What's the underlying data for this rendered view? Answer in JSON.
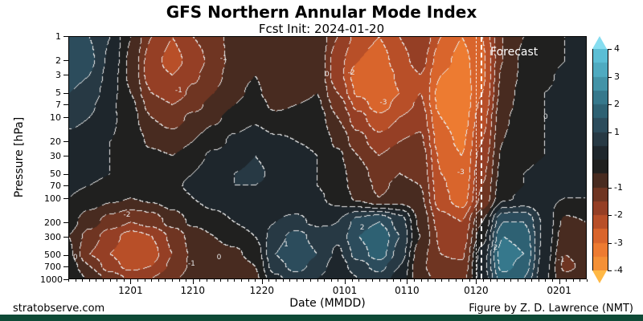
{
  "header": {
    "title": "GFS Northern Annular Mode Index",
    "subtitle": "Fcst Init: 2024-01-20"
  },
  "footer": {
    "left": "stratobserve.com",
    "right": "Figure by Z. D. Lawrence (NMT)",
    "bar_color": "#0e4a36"
  },
  "chart_data": {
    "type": "heatmap",
    "title": "GFS Northern Annular Mode Index",
    "subtitle": "Fcst Init: 2024-01-20",
    "xlabel": "Date (MMDD)",
    "ylabel": "Pressure [hPa]",
    "x_days_range": [
      0,
      75
    ],
    "x_ticks": [
      {
        "day": 9,
        "label": "1201"
      },
      {
        "day": 18,
        "label": "1210"
      },
      {
        "day": 28,
        "label": "1220"
      },
      {
        "day": 40,
        "label": "0101"
      },
      {
        "day": 49,
        "label": "0110"
      },
      {
        "day": 59,
        "label": "0120"
      },
      {
        "day": 71,
        "label": "0201"
      }
    ],
    "y_ticks": [
      1,
      2,
      3,
      5,
      7,
      10,
      20,
      30,
      50,
      70,
      100,
      200,
      300,
      500,
      700,
      1000
    ],
    "y_scale": "log",
    "contour_interval": 0.5,
    "value_range": [
      -4,
      4
    ],
    "colorbar_ticks": [
      4,
      3,
      2,
      1,
      -1,
      -2,
      -3,
      -4
    ],
    "colormap": {
      "values": [
        -4.5,
        -4,
        -3,
        -2,
        -1,
        -0.25,
        0.25,
        1,
        2,
        3,
        4,
        4.5
      ],
      "colors": [
        "#ffb845",
        "#f89b38",
        "#e9702e",
        "#a84426",
        "#5c3020",
        "#20201f",
        "#1e262c",
        "#2b4250",
        "#2f6b7e",
        "#49a0b5",
        "#62c8e0",
        "#86ddf0"
      ],
      "over": "#86ddf0",
      "under": "#ffb845",
      "contour_line_color": "#ebebeb"
    },
    "forecast": {
      "label": "Forecast",
      "day": 59.7
    },
    "grid": {
      "times_days": [
        0,
        3,
        6,
        9,
        12,
        15,
        18,
        21,
        24,
        27,
        30,
        33,
        36,
        39,
        42,
        45,
        48,
        51,
        54,
        57,
        60,
        63,
        66,
        69,
        72,
        75
      ],
      "pressures": [
        1,
        2,
        3,
        5,
        7,
        10,
        20,
        30,
        50,
        70,
        100,
        200,
        300,
        500,
        700,
        1000
      ],
      "values": [
        [
          1.2,
          1.0,
          0.5,
          -0.5,
          -1.5,
          -2.0,
          -1.5,
          -1.2,
          -0.8,
          -0.5,
          -1.0,
          -0.8,
          -0.5,
          -1.5,
          -2.2,
          -2.5,
          -2.0,
          -1.5,
          -2.5,
          -3.0,
          -2.5,
          -1.0,
          -0.5,
          -0.2,
          0.0,
          0.3
        ],
        [
          1.3,
          1.1,
          0.4,
          -0.6,
          -1.8,
          -2.2,
          -1.8,
          -1.3,
          -0.8,
          -0.6,
          -1.0,
          -0.9,
          -0.6,
          -1.8,
          -2.5,
          -2.8,
          -2.2,
          -1.8,
          -2.8,
          -3.2,
          -2.6,
          -1.0,
          -0.4,
          -0.2,
          0.0,
          0.3
        ],
        [
          1.2,
          1.0,
          0.3,
          -0.6,
          -1.8,
          -2.0,
          -1.6,
          -1.2,
          -0.7,
          -0.5,
          -0.9,
          -0.8,
          -0.6,
          -1.8,
          -2.8,
          -3.0,
          -2.4,
          -2.0,
          -3.0,
          -3.3,
          -2.6,
          -0.9,
          -0.4,
          -0.1,
          0.1,
          0.4
        ],
        [
          1.0,
          0.8,
          0.2,
          -0.5,
          -1.5,
          -1.8,
          -1.4,
          -1.0,
          -0.6,
          -0.4,
          -0.8,
          -0.7,
          -0.5,
          -1.5,
          -2.6,
          -3.0,
          -2.5,
          -2.0,
          -3.2,
          -3.4,
          -2.5,
          -0.8,
          -0.3,
          0.0,
          0.1,
          0.4
        ],
        [
          0.8,
          0.6,
          0.1,
          -0.4,
          -1.2,
          -1.5,
          -1.2,
          -0.8,
          -0.5,
          -0.3,
          -0.6,
          -0.5,
          -0.4,
          -1.2,
          -2.2,
          -2.8,
          -2.3,
          -1.9,
          -3.2,
          -3.4,
          -2.4,
          -0.7,
          -0.3,
          0.0,
          0.2,
          0.4
        ],
        [
          0.6,
          0.5,
          0.1,
          -0.3,
          -1.0,
          -1.2,
          -0.9,
          -0.6,
          -0.3,
          -0.1,
          -0.4,
          -0.3,
          -0.2,
          -1.0,
          -1.8,
          -2.4,
          -2.0,
          -1.7,
          -3.0,
          -3.3,
          -2.2,
          -0.6,
          -0.2,
          0.0,
          0.2,
          0.4
        ],
        [
          0.4,
          0.3,
          0.0,
          -0.2,
          -0.6,
          -0.8,
          -0.5,
          -0.2,
          0.1,
          0.3,
          0.1,
          0.0,
          -0.1,
          -0.6,
          -1.3,
          -1.8,
          -1.5,
          -1.4,
          -2.8,
          -3.1,
          -2.0,
          -0.5,
          -0.1,
          0.0,
          0.1,
          0.3
        ],
        [
          0.3,
          0.2,
          0.0,
          -0.1,
          -0.4,
          -0.5,
          -0.2,
          0.1,
          0.3,
          0.5,
          0.3,
          0.2,
          0.0,
          -0.4,
          -1.0,
          -1.5,
          -1.2,
          -1.2,
          -2.6,
          -3.0,
          -1.8,
          -0.4,
          -0.1,
          0.0,
          0.1,
          0.2
        ],
        [
          0.2,
          0.1,
          0.0,
          -0.1,
          -0.2,
          -0.2,
          0.0,
          0.3,
          0.5,
          0.6,
          0.4,
          0.2,
          0.0,
          -0.3,
          -0.8,
          -1.2,
          -1.0,
          -1.1,
          -2.5,
          -3.0,
          -1.6,
          -0.3,
          0.0,
          0.1,
          0.1,
          0.2
        ],
        [
          0.1,
          0.0,
          -0.1,
          -0.2,
          -0.2,
          -0.1,
          0.1,
          0.3,
          0.5,
          0.5,
          0.4,
          0.2,
          0.0,
          -0.3,
          -0.7,
          -1.1,
          -0.9,
          -1.0,
          -2.4,
          -2.9,
          -1.5,
          -0.2,
          0.0,
          0.1,
          0.0,
          0.1
        ],
        [
          0.0,
          -0.2,
          -0.4,
          -0.5,
          -0.4,
          -0.2,
          0.0,
          0.2,
          0.4,
          0.4,
          0.3,
          0.2,
          0.1,
          -0.2,
          -0.6,
          -1.0,
          -0.8,
          -0.9,
          -2.3,
          -2.8,
          -1.4,
          -0.1,
          0.1,
          0.1,
          0.0,
          0.0
        ],
        [
          -0.3,
          -0.8,
          -1.2,
          -1.5,
          -1.3,
          -0.8,
          -0.4,
          -0.2,
          0.0,
          0.2,
          0.5,
          0.6,
          0.4,
          0.5,
          1.2,
          1.5,
          0.8,
          -0.6,
          -1.8,
          -2.0,
          -0.5,
          1.5,
          1.5,
          0.4,
          -0.6,
          -0.5
        ],
        [
          -0.5,
          -1.2,
          -1.8,
          -2.2,
          -2.0,
          -1.4,
          -0.8,
          -0.5,
          -0.3,
          0.0,
          0.8,
          1.2,
          0.8,
          0.6,
          1.5,
          2.0,
          1.0,
          -0.5,
          -1.6,
          -1.8,
          -0.2,
          2.0,
          1.8,
          0.4,
          -0.8,
          -0.6
        ],
        [
          -0.4,
          -1.5,
          -2.0,
          -2.4,
          -2.2,
          -1.5,
          -0.9,
          -0.7,
          -0.6,
          -0.3,
          1.0,
          1.5,
          1.0,
          0.4,
          1.2,
          1.8,
          0.8,
          -0.8,
          -1.5,
          -1.6,
          0.2,
          2.3,
          2.0,
          0.3,
          -1.0,
          -0.8
        ],
        [
          -0.2,
          -1.0,
          -1.8,
          -2.2,
          -2.0,
          -1.4,
          -0.9,
          -0.8,
          -0.8,
          -0.5,
          0.8,
          1.2,
          0.8,
          0.2,
          0.8,
          1.2,
          0.5,
          -0.9,
          -1.4,
          -1.4,
          0.3,
          2.2,
          1.8,
          0.2,
          -1.1,
          -0.9
        ],
        [
          0.0,
          -0.6,
          -1.2,
          -1.6,
          -1.5,
          -1.1,
          -0.8,
          -0.9,
          -1.0,
          -0.6,
          0.4,
          0.8,
          0.5,
          0.1,
          0.5,
          0.8,
          0.3,
          -0.8,
          -1.2,
          -1.2,
          0.2,
          1.8,
          1.5,
          0.1,
          -0.9,
          -0.8
        ]
      ]
    },
    "contour_labels": [
      {
        "text": "-1",
        "fx": 0.212,
        "fy": 0.224
      },
      {
        "text": "-1",
        "fx": 0.299,
        "fy": 0.089
      },
      {
        "text": "0",
        "fx": 0.499,
        "fy": 0.155
      },
      {
        "text": "-2",
        "fx": 0.546,
        "fy": 0.149
      },
      {
        "text": "-3",
        "fx": 0.608,
        "fy": 0.271
      },
      {
        "text": "-3",
        "fx": 0.758,
        "fy": 0.561
      },
      {
        "text": "0",
        "fx": 0.922,
        "fy": 0.333
      },
      {
        "text": "2",
        "fx": 0.825,
        "fy": 0.875
      },
      {
        "text": "2",
        "fx": 0.567,
        "fy": 0.79
      },
      {
        "text": "-2",
        "fx": 0.112,
        "fy": 0.739
      },
      {
        "text": "0",
        "fx": 0.012,
        "fy": 0.914
      },
      {
        "text": "1",
        "fx": 0.42,
        "fy": 0.86
      },
      {
        "text": "-1",
        "fx": 0.237,
        "fy": 0.94
      },
      {
        "text": "0",
        "fx": 0.29,
        "fy": 0.914
      },
      {
        "text": "-1",
        "fx": 0.952,
        "fy": 0.924
      }
    ]
  }
}
